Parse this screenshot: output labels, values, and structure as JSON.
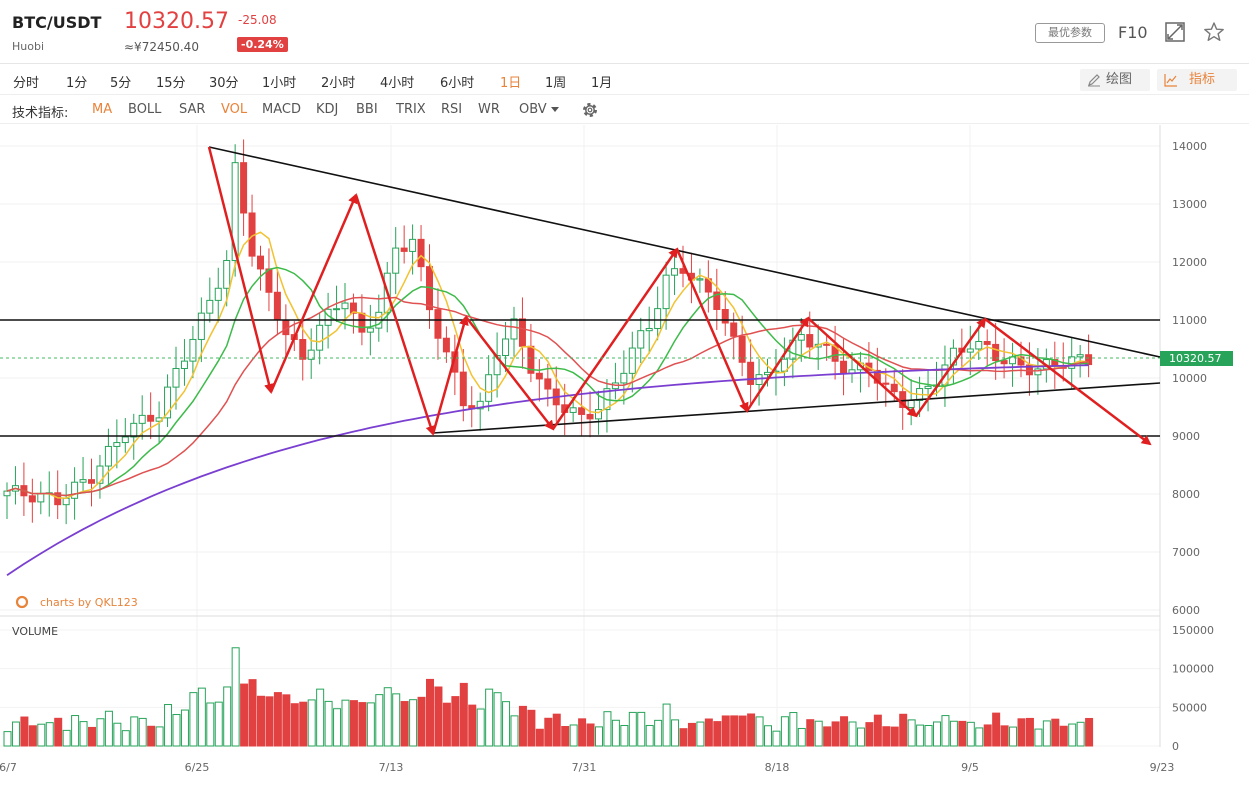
{
  "header": {
    "pair": "BTC/USDT",
    "exchange": "Huobi",
    "price": "10320.57",
    "cny_price": "≈¥72450.40",
    "change": "-25.08",
    "change_pct": "-0.24%",
    "param_button": "最优参数",
    "f10_button": "F10",
    "accent_red": "#e24141",
    "accent_orange": "#e8833a"
  },
  "periods": [
    {
      "label": "分时",
      "active": false
    },
    {
      "label": "1分",
      "active": false
    },
    {
      "label": "5分",
      "active": false
    },
    {
      "label": "15分",
      "active": false
    },
    {
      "label": "30分",
      "active": false
    },
    {
      "label": "1小时",
      "active": false
    },
    {
      "label": "2小时",
      "active": false
    },
    {
      "label": "4小时",
      "active": false
    },
    {
      "label": "6小时",
      "active": false
    },
    {
      "label": "1日",
      "active": true
    },
    {
      "label": "1周",
      "active": false
    },
    {
      "label": "1月",
      "active": false
    }
  ],
  "tools": {
    "draw": "绘图",
    "indicator": "指标"
  },
  "indicators": {
    "label": "技术指标:",
    "items": [
      {
        "label": "MA",
        "active": true
      },
      {
        "label": "BOLL",
        "active": false
      },
      {
        "label": "SAR",
        "active": false
      },
      {
        "label": "VOL",
        "active": true
      },
      {
        "label": "MACD",
        "active": false
      },
      {
        "label": "KDJ",
        "active": false
      },
      {
        "label": "BBI",
        "active": false
      },
      {
        "label": "TRIX",
        "active": false
      },
      {
        "label": "RSI",
        "active": false
      },
      {
        "label": "WR",
        "active": false
      },
      {
        "label": "OBV",
        "active": false
      }
    ]
  },
  "chart_data": {
    "type": "candlestick",
    "price_axis": {
      "ticks": [
        "14000",
        "13000",
        "12000",
        "11000",
        "10000",
        "9000",
        "8000",
        "7000",
        "6000"
      ]
    },
    "last_price_tag": "10320.57",
    "volume_label": "VOLUME",
    "volume_axis": {
      "ticks": [
        "150000",
        "100000",
        "50000",
        "0"
      ]
    },
    "date_ticks": [
      "6/7",
      "6/25",
      "7/13",
      "7/31",
      "8/18",
      "9/5",
      "9/23"
    ],
    "watermark": "charts by QKL123",
    "horizontal_levels": [
      11000,
      9000
    ],
    "annotation_color": "#e02020",
    "trendline_color": "#111111"
  }
}
